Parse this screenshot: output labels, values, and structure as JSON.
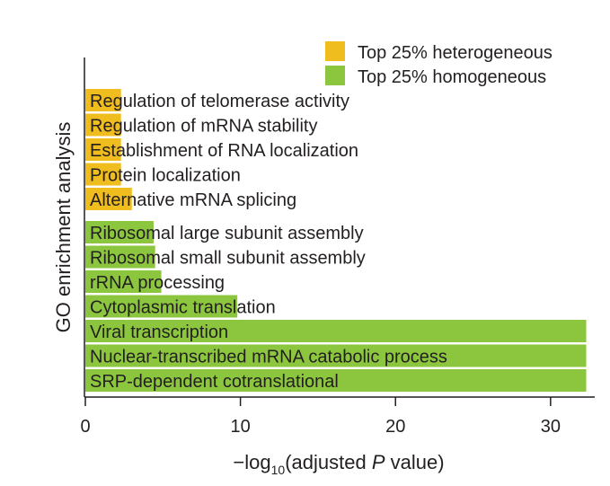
{
  "chart_data": {
    "type": "bar",
    "orientation": "horizontal",
    "ylabel": "GO enrichment analysis",
    "xlabel_prefix": "−log",
    "xlabel_sub": "10",
    "xlabel_main": "(adjusted ",
    "xlabel_italic": "P",
    "xlabel_suffix": " value)",
    "xlim": [
      0,
      32.5
    ],
    "xticks": [
      0,
      10,
      20,
      30
    ],
    "grid": false,
    "legend_position": "top-right",
    "series": [
      {
        "name": "Top 25% heterogeneous",
        "color": "#f0bd1e",
        "categories": [
          "Regulation of telomerase activity",
          "Regulation of mRNA stability",
          "Establishment of RNA localization",
          "Protein localization",
          "Alternative mRNA splicing"
        ],
        "values": [
          2.3,
          2.3,
          2.3,
          2.3,
          3.0
        ]
      },
      {
        "name": "Top 25% homogeneous",
        "color": "#8cc63f",
        "categories": [
          "Ribosomal large subunit assembly",
          "Ribosomal small subunit assembly",
          "rRNA processing",
          "Cytoplasmic translation",
          "Viral transcription",
          "Nuclear-transcribed mRNA catabolic process",
          "SRP-dependent cotranslational"
        ],
        "values": [
          4.4,
          4.5,
          4.9,
          9.8,
          32.3,
          32.3,
          32.3
        ]
      }
    ]
  }
}
